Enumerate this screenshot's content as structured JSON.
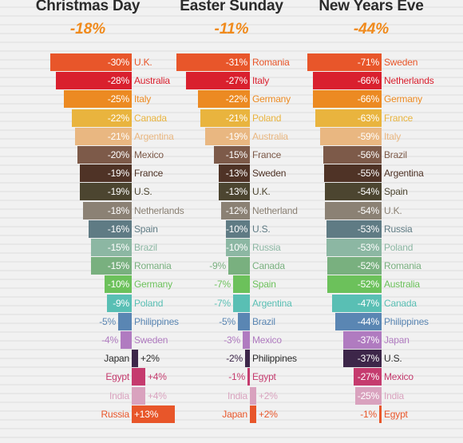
{
  "chart_data": [
    {
      "type": "bar",
      "title": "Christmas Day",
      "subtitle": "-18%",
      "rows": [
        {
          "country": "U.K.",
          "value": -30,
          "label": "-30%",
          "color": "#e8562a"
        },
        {
          "country": "Australia",
          "value": -28,
          "label": "-28%",
          "color": "#d9202e"
        },
        {
          "country": "Italy",
          "value": -25,
          "label": "-25%",
          "color": "#ec8a22"
        },
        {
          "country": "Canada",
          "value": -22,
          "label": "-22%",
          "color": "#e9b43e"
        },
        {
          "country": "Argentina",
          "value": -21,
          "label": "-21%",
          "color": "#e9b781"
        },
        {
          "country": "Mexico",
          "value": -20,
          "label": "-20%",
          "color": "#7d5a49"
        },
        {
          "country": "France",
          "value": -19,
          "label": "-19%",
          "color": "#4f3326"
        },
        {
          "country": "U.S.",
          "value": -19,
          "label": "-19%",
          "color": "#4c4530"
        },
        {
          "country": "Netherlands",
          "value": -18,
          "label": "-18%",
          "color": "#8b8174"
        },
        {
          "country": "Spain",
          "value": -16,
          "label": "-16%",
          "color": "#5f7b84"
        },
        {
          "country": "Brazil",
          "value": -15,
          "label": "-15%",
          "color": "#8cb7a3"
        },
        {
          "country": "Romania",
          "value": -15,
          "label": "-15%",
          "color": "#79b07f"
        },
        {
          "country": "Germany",
          "value": -10,
          "label": "-10%",
          "color": "#6cc15b"
        },
        {
          "country": "Poland",
          "value": -9,
          "label": "-9%",
          "color": "#59bfb4"
        },
        {
          "country": "Philippines",
          "value": -5,
          "label": "-5%",
          "color": "#5a86b3"
        },
        {
          "country": "Sweden",
          "value": -4,
          "label": "-4%",
          "color": "#b07bc0"
        },
        {
          "country": "Japan",
          "value": 2,
          "label": "+2%",
          "color": "#3d2649"
        },
        {
          "country": "Egypt",
          "value": 4,
          "label": "+4%",
          "color": "#c53b6e"
        },
        {
          "country": "India",
          "value": 4,
          "label": "+4%",
          "color": "#d9a2be"
        },
        {
          "country": "Russia",
          "value": 13,
          "label": "+13%",
          "color": "#e8562a"
        }
      ]
    },
    {
      "type": "bar",
      "title": "Easter Sunday",
      "subtitle": "-11%",
      "rows": [
        {
          "country": "Romania",
          "value": -31,
          "label": "-31%",
          "color": "#e8562a"
        },
        {
          "country": "Italy",
          "value": -27,
          "label": "-27%",
          "color": "#d9202e"
        },
        {
          "country": "Germany",
          "value": -22,
          "label": "-22%",
          "color": "#ec8a22"
        },
        {
          "country": "Poland",
          "value": -21,
          "label": "-21%",
          "color": "#e9b43e"
        },
        {
          "country": "Australia",
          "value": -19,
          "label": "-19%",
          "color": "#e9b781"
        },
        {
          "country": "France",
          "value": -15,
          "label": "-15%",
          "color": "#7d5a49"
        },
        {
          "country": "Sweden",
          "value": -13,
          "label": "-13%",
          "color": "#4f3326"
        },
        {
          "country": "U.K.",
          "value": -13,
          "label": "-13%",
          "color": "#4c4530"
        },
        {
          "country": "Netherland",
          "value": -12,
          "label": "-12%",
          "color": "#8b8174"
        },
        {
          "country": "U.S.",
          "value": -10,
          "label": "-10%",
          "color": "#5f7b84"
        },
        {
          "country": "Russia",
          "value": -10,
          "label": "-10%",
          "color": "#8cb7a3"
        },
        {
          "country": "Canada",
          "value": -9,
          "label": "-9%",
          "color": "#79b07f"
        },
        {
          "country": "Spain",
          "value": -7,
          "label": "-7%",
          "color": "#6cc15b"
        },
        {
          "country": "Argentina",
          "value": -7,
          "label": "-7%",
          "color": "#59bfb4"
        },
        {
          "country": "Brazil",
          "value": -5,
          "label": "-5%",
          "color": "#5a86b3"
        },
        {
          "country": "Mexico",
          "value": -3,
          "label": "-3%",
          "color": "#b07bc0"
        },
        {
          "country": "Philippines",
          "value": -2,
          "label": "-2%",
          "color": "#3d2649"
        },
        {
          "country": "Egypt",
          "value": -1,
          "label": "-1%",
          "color": "#c53b6e"
        },
        {
          "country": "India",
          "value": 2,
          "label": "+2%",
          "color": "#d9a2be"
        },
        {
          "country": "Japan",
          "value": 2,
          "label": "+2%",
          "color": "#e8562a"
        }
      ]
    },
    {
      "type": "bar",
      "title": "New Years Eve",
      "subtitle": "-44%",
      "rows": [
        {
          "country": "Sweden",
          "value": -71,
          "label": "-71%",
          "color": "#e8562a"
        },
        {
          "country": "Netherlands",
          "value": -66,
          "label": "-66%",
          "color": "#d9202e"
        },
        {
          "country": "Germany",
          "value": -66,
          "label": "-66%",
          "color": "#ec8a22"
        },
        {
          "country": "France",
          "value": -63,
          "label": "-63%",
          "color": "#e9b43e"
        },
        {
          "country": "Italy",
          "value": -59,
          "label": "-59%",
          "color": "#e9b781"
        },
        {
          "country": "Brazil",
          "value": -56,
          "label": "-56%",
          "color": "#7d5a49"
        },
        {
          "country": "Argentina",
          "value": -55,
          "label": "-55%",
          "color": "#4f3326"
        },
        {
          "country": "Spain",
          "value": -54,
          "label": "-54%",
          "color": "#4c4530"
        },
        {
          "country": "U.K.",
          "value": -54,
          "label": "-54%",
          "color": "#8b8174"
        },
        {
          "country": "Russia",
          "value": -53,
          "label": "-53%",
          "color": "#5f7b84"
        },
        {
          "country": "Poland",
          "value": -53,
          "label": "-53%",
          "color": "#8cb7a3"
        },
        {
          "country": "Romania",
          "value": -52,
          "label": "-52%",
          "color": "#79b07f"
        },
        {
          "country": "Australia",
          "value": -52,
          "label": "-52%",
          "color": "#6cc15b"
        },
        {
          "country": "Canada",
          "value": -47,
          "label": "-47%",
          "color": "#59bfb4"
        },
        {
          "country": "Philippines",
          "value": -44,
          "label": "-44%",
          "color": "#5a86b3"
        },
        {
          "country": "Japan",
          "value": -37,
          "label": "-37%",
          "color": "#b07bc0"
        },
        {
          "country": "U.S.",
          "value": -37,
          "label": "-37%",
          "color": "#3d2649"
        },
        {
          "country": "Mexico",
          "value": -27,
          "label": "-27%",
          "color": "#c53b6e"
        },
        {
          "country": "India",
          "value": -25,
          "label": "-25%",
          "color": "#d9a2be"
        },
        {
          "country": "Egypt",
          "value": -1,
          "label": "-1%",
          "color": "#e8562a"
        }
      ]
    }
  ]
}
